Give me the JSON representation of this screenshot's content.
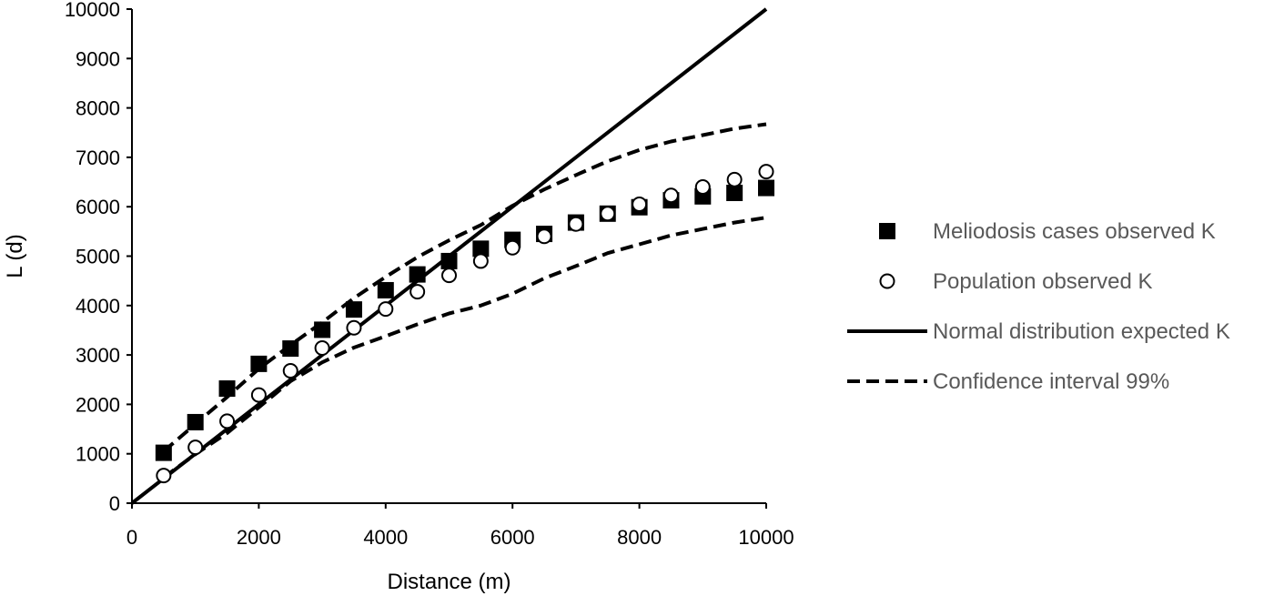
{
  "chart_data": {
    "type": "scatter",
    "title": "",
    "xlabel": "Distance (m)",
    "ylabel": "L (d)",
    "xlim": [
      0,
      10000
    ],
    "ylim": [
      0,
      10000
    ],
    "x_ticks": [
      "0",
      "2000",
      "4000",
      "6000",
      "8000",
      "10000"
    ],
    "y_ticks": [
      "0",
      "1000",
      "2000",
      "3000",
      "4000",
      "5000",
      "6000",
      "7000",
      "8000",
      "9000",
      "10000"
    ],
    "grid": false,
    "legend_position": "right",
    "series": [
      {
        "name": "Meliodosis cases observed K",
        "kind": "marker",
        "marker": "filled-square",
        "color": "#000000",
        "x": [
          500,
          1000,
          1500,
          2000,
          2500,
          3000,
          3500,
          4000,
          4500,
          5000,
          5500,
          6000,
          6500,
          7000,
          7500,
          8000,
          8500,
          9000,
          9500,
          10000
        ],
        "y": [
          1020,
          1640,
          2320,
          2820,
          3130,
          3510,
          3920,
          4310,
          4630,
          4900,
          5150,
          5330,
          5450,
          5680,
          5860,
          5990,
          6130,
          6210,
          6280,
          6380
        ]
      },
      {
        "name": "Population observed K",
        "kind": "marker",
        "marker": "open-circle",
        "color": "#000000",
        "x": [
          500,
          1000,
          1500,
          2000,
          2500,
          3000,
          3500,
          4000,
          4500,
          5000,
          5500,
          6000,
          6500,
          7000,
          7500,
          8000,
          8500,
          9000,
          9500,
          10000
        ],
        "y": [
          560,
          1130,
          1660,
          2190,
          2680,
          3140,
          3550,
          3930,
          4280,
          4610,
          4900,
          5170,
          5400,
          5650,
          5860,
          6050,
          6230,
          6400,
          6550,
          6710
        ]
      },
      {
        "name": "Normal distribution expected K",
        "kind": "line",
        "style": "solid",
        "color": "#000000",
        "x": [
          0,
          10000
        ],
        "y": [
          0,
          10000
        ]
      },
      {
        "name": "Confidence interval 99%",
        "kind": "line",
        "style": "dashed",
        "color": "#000000",
        "x": [
          500,
          1000,
          1500,
          2000,
          2500,
          3000,
          3500,
          4000,
          4500,
          5000,
          5500,
          6000,
          6500,
          7000,
          7500,
          8000,
          8500,
          9000,
          9500,
          10000
        ],
        "y": [
          1050,
          1600,
          2150,
          2720,
          3200,
          3660,
          4150,
          4580,
          4980,
          5320,
          5630,
          6020,
          6350,
          6640,
          6920,
          7150,
          7320,
          7450,
          7580,
          7670
        ]
      },
      {
        "name": "Confidence interval 99% (lower)",
        "kind": "line",
        "style": "dashed",
        "color": "#000000",
        "in_legend": false,
        "x": [
          500,
          1000,
          1500,
          2000,
          2500,
          3000,
          3500,
          4000,
          4500,
          5000,
          5500,
          6000,
          6500,
          7000,
          7500,
          8000,
          8500,
          9000,
          9500,
          10000
        ],
        "y": [
          520,
          990,
          1420,
          1940,
          2470,
          2850,
          3150,
          3380,
          3620,
          3840,
          4000,
          4240,
          4550,
          4800,
          5060,
          5240,
          5420,
          5550,
          5680,
          5780
        ]
      }
    ]
  }
}
